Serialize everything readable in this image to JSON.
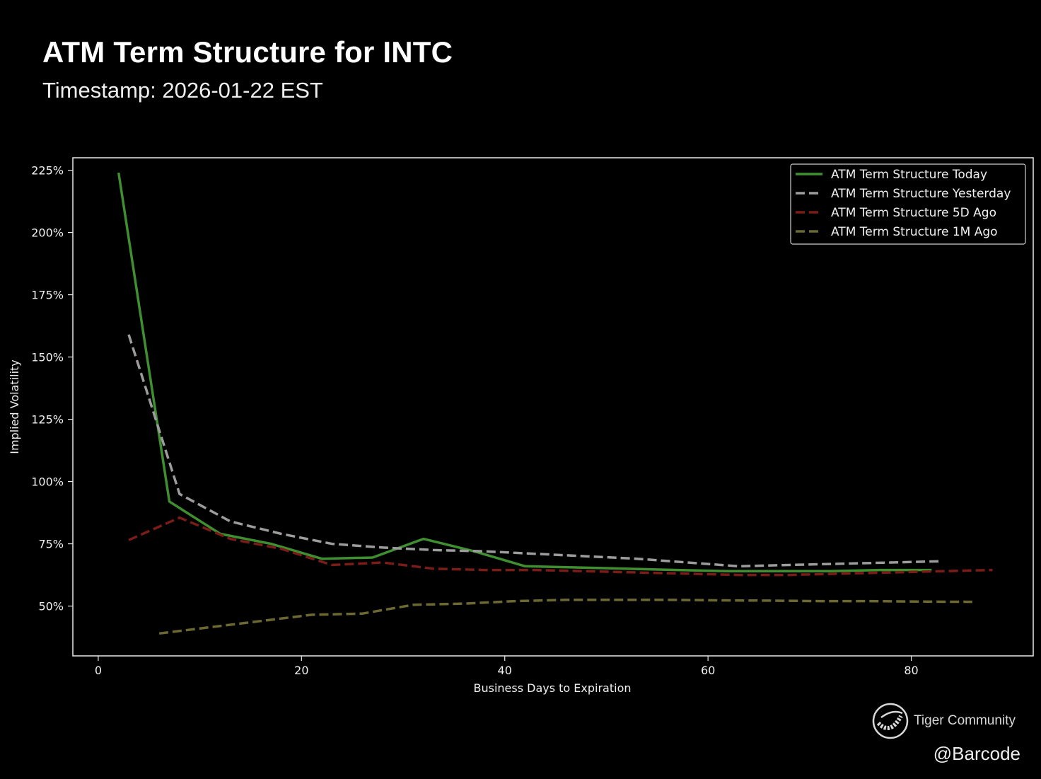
{
  "header": {
    "title": "ATM Term Structure for INTC",
    "subtitle": "Timestamp: 2026-01-22 EST"
  },
  "chart_data": {
    "type": "line",
    "xlabel": "Business Days to Expiration",
    "ylabel": "Implied Volatility",
    "xlim": [
      -2.5,
      92
    ],
    "ylim": [
      30,
      230
    ],
    "x_ticks": [
      0,
      20,
      40,
      60,
      80
    ],
    "y_ticks": [
      50,
      75,
      100,
      125,
      150,
      175,
      200,
      225
    ],
    "y_tick_format": "percent",
    "grid": false,
    "legend_position": "top-right",
    "series": [
      {
        "name": "ATM Term Structure Today",
        "color": "#3f8f31",
        "dash": "solid",
        "x": [
          2,
          7,
          12,
          17,
          22,
          27,
          32,
          37,
          42,
          47,
          52,
          57,
          62,
          67,
          72,
          77,
          82
        ],
        "y": [
          224,
          92,
          79,
          75,
          69,
          69.5,
          77,
          72,
          66,
          65.5,
          65,
          64.5,
          64,
          64,
          64,
          64.5,
          64.5
        ]
      },
      {
        "name": "ATM Term Structure Yesterday",
        "color": "#9c9c9c",
        "dash": "dashed",
        "x": [
          3,
          8,
          13,
          18,
          23,
          28,
          33,
          38,
          43,
          48,
          53,
          58,
          63,
          68,
          73,
          78,
          83
        ],
        "y": [
          159,
          95,
          84,
          79,
          75,
          73.5,
          72.5,
          72,
          71,
          70,
          69,
          67.5,
          66,
          66.5,
          67,
          67.5,
          68
        ]
      },
      {
        "name": "ATM Term Structure 5D Ago",
        "color": "#7a1c17",
        "dash": "dashed",
        "x": [
          3,
          8,
          13,
          18,
          23,
          28,
          33,
          38,
          43,
          48,
          53,
          58,
          63,
          68,
          73,
          78,
          83,
          88
        ],
        "y": [
          76.5,
          85.5,
          77,
          73,
          66.5,
          67.5,
          65,
          64.5,
          64.5,
          64,
          63.5,
          63,
          62.5,
          62.5,
          63,
          63.5,
          64,
          64.5
        ]
      },
      {
        "name": "ATM Term Structure 1M Ago",
        "color": "#6b6931",
        "dash": "dashed",
        "x": [
          6,
          11,
          16,
          21,
          26,
          31,
          36,
          41,
          46,
          51,
          56,
          61,
          66,
          71,
          76,
          81,
          86
        ],
        "y": [
          39,
          41.5,
          44,
          46.5,
          47,
          50.5,
          51,
          52,
          52.5,
          52.5,
          52.5,
          52.3,
          52.2,
          52,
          52,
          51.8,
          51.7
        ]
      }
    ]
  },
  "watermark": {
    "brand": "Tiger Community",
    "icon": "tiger-logo-icon",
    "handle": "@Barcode"
  }
}
